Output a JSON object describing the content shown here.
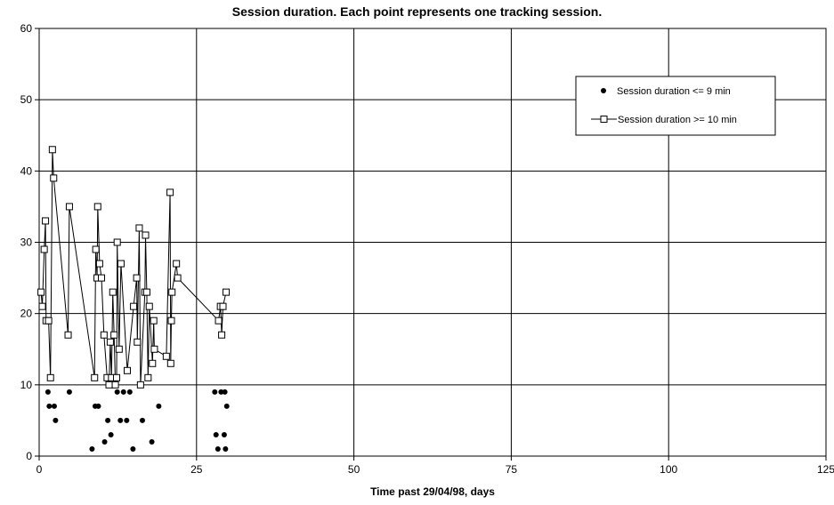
{
  "chart_data": {
    "type": "scatter",
    "title": "Session duration. Each point represents one tracking session.",
    "xlabel": "Time past 29/04/98, days",
    "ylabel": "",
    "xlim": [
      0,
      125
    ],
    "ylim": [
      0,
      60
    ],
    "x_ticks": [
      0,
      25,
      50,
      75,
      100,
      125
    ],
    "y_ticks": [
      0,
      10,
      20,
      30,
      40,
      50,
      60
    ],
    "grid": "vertical and horizontal gridlines at each major tick",
    "legend_position": "upper-right",
    "series": [
      {
        "name": "Session duration <= 9 min",
        "style": "filled-circle markers, no line",
        "color": "#000000",
        "points": [
          [
            1.4,
            9
          ],
          [
            1.6,
            7
          ],
          [
            2.4,
            7
          ],
          [
            2.6,
            5
          ],
          [
            4.8,
            9
          ],
          [
            8.4,
            1
          ],
          [
            8.9,
            7
          ],
          [
            9.4,
            7
          ],
          [
            10.4,
            2
          ],
          [
            10.9,
            5
          ],
          [
            11.4,
            3
          ],
          [
            12.4,
            9
          ],
          [
            12.9,
            5
          ],
          [
            13.4,
            9
          ],
          [
            13.9,
            5
          ],
          [
            14.4,
            9
          ],
          [
            14.9,
            1
          ],
          [
            16.4,
            5
          ],
          [
            17.9,
            2
          ],
          [
            19.0,
            7
          ],
          [
            27.9,
            9
          ],
          [
            28.1,
            3
          ],
          [
            28.4,
            1
          ],
          [
            28.9,
            9
          ],
          [
            29.4,
            3
          ],
          [
            29.5,
            9
          ],
          [
            29.6,
            1
          ],
          [
            29.8,
            7
          ]
        ]
      },
      {
        "name": "Session duration >= 10 min",
        "style": "open-square markers joined by line",
        "color": "#000000",
        "points": [
          [
            0.3,
            23
          ],
          [
            0.5,
            21
          ],
          [
            0.8,
            29
          ],
          [
            1.0,
            33
          ],
          [
            1.1,
            19
          ],
          [
            1.5,
            19
          ],
          [
            1.8,
            11
          ],
          [
            2.1,
            43
          ],
          [
            2.3,
            39
          ],
          [
            4.6,
            17
          ],
          [
            4.8,
            35
          ],
          [
            8.8,
            11
          ],
          [
            9.0,
            29
          ],
          [
            9.2,
            25
          ],
          [
            9.3,
            35
          ],
          [
            9.6,
            27
          ],
          [
            9.9,
            25
          ],
          [
            10.3,
            17
          ],
          [
            10.8,
            11
          ],
          [
            11.1,
            10
          ],
          [
            11.3,
            16
          ],
          [
            11.5,
            11
          ],
          [
            11.7,
            23
          ],
          [
            11.9,
            17
          ],
          [
            12.1,
            10
          ],
          [
            12.3,
            11
          ],
          [
            12.4,
            30
          ],
          [
            12.7,
            15
          ],
          [
            13.0,
            27
          ],
          [
            14.0,
            12
          ],
          [
            15.0,
            21
          ],
          [
            15.5,
            25
          ],
          [
            15.6,
            16
          ],
          [
            15.9,
            32
          ],
          [
            16.1,
            10
          ],
          [
            16.8,
            23
          ],
          [
            16.9,
            31
          ],
          [
            17.1,
            23
          ],
          [
            17.3,
            11
          ],
          [
            17.5,
            21
          ],
          [
            18.0,
            13
          ],
          [
            18.2,
            19
          ],
          [
            18.3,
            15
          ],
          [
            20.2,
            14
          ],
          [
            20.8,
            37
          ],
          [
            20.9,
            13
          ],
          [
            21.0,
            19
          ],
          [
            21.1,
            23
          ],
          [
            21.8,
            27
          ],
          [
            22.0,
            25
          ],
          [
            28.5,
            19
          ],
          [
            28.8,
            21
          ],
          [
            29.0,
            17
          ],
          [
            29.2,
            21
          ],
          [
            29.7,
            23
          ]
        ]
      }
    ]
  }
}
